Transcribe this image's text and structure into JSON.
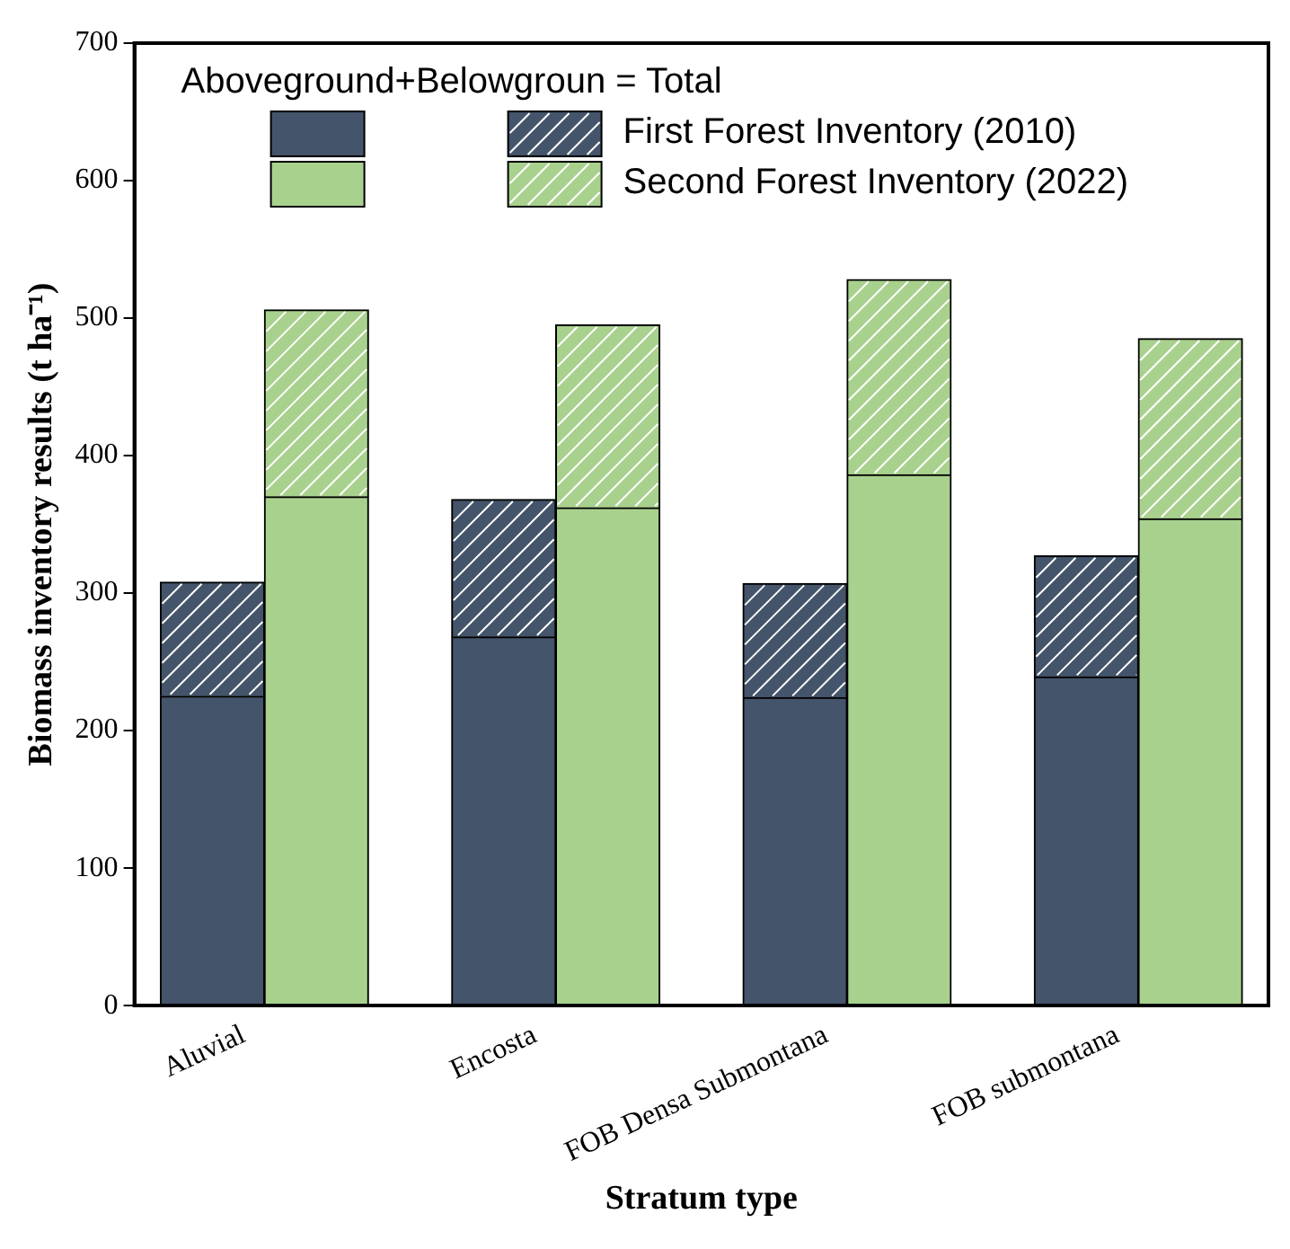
{
  "chart_data": {
    "type": "bar",
    "stacked": true,
    "xlabel": "Stratum type",
    "ylabel": "Biomass inventory results (t ha⁻¹)",
    "legend_title": "Aboveground+Belowgroun = Total",
    "categories": [
      "Aluvial",
      null,
      "Encosta",
      null,
      "FOB Densa Submontana",
      null,
      "FOB submontana",
      null
    ],
    "series": [
      {
        "name": "First Forest Inventory (2010)",
        "color": "#44546a",
        "values": [
          225,
          null,
          268,
          null,
          224,
          null,
          239,
          null
        ]
      },
      {
        "color": "#44546a",
        "values": [
          83,
          null,
          100,
          null,
          83,
          null,
          88,
          null
        ]
      },
      {
        "name": "Second Forest Inventory (2022)",
        "color": "#a9d18e",
        "values": [
          null,
          370,
          null,
          362,
          null,
          386,
          null,
          354
        ]
      },
      {
        "color": "#a9d18e",
        "values": [
          null,
          136,
          null,
          133,
          null,
          142,
          null,
          131
        ]
      }
    ],
    "ylim": [
      0,
      700
    ],
    "yticks": [
      0,
      100,
      200,
      300,
      400,
      500,
      600,
      700
    ],
    "legend": "top left",
    "grid": false
  }
}
